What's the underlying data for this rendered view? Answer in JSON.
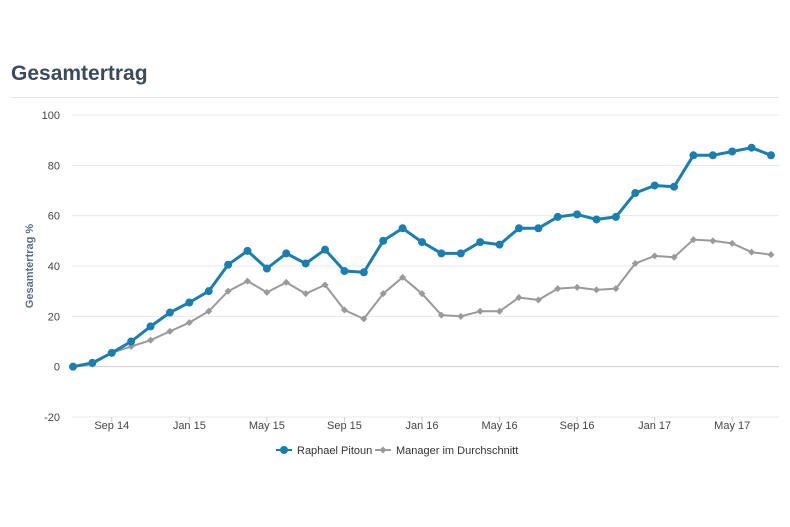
{
  "chart_data": {
    "type": "line",
    "title": "Gesamtertrag",
    "ylabel": "Gesamtertrag %",
    "xlabel": "",
    "ylim": [
      -20,
      100
    ],
    "yticks": [
      -20,
      0,
      20,
      40,
      60,
      80,
      100
    ],
    "x_tick_labels": [
      "Sep 14",
      "Jan 15",
      "May 15",
      "Sep 15",
      "Jan 16",
      "May 16",
      "Sep 16",
      "Jan 17",
      "May 17"
    ],
    "x_tick_index": [
      2,
      6,
      10,
      14,
      18,
      22,
      26,
      30,
      34
    ],
    "grid": true,
    "legend_position": "bottom",
    "x": [
      "Jul 14",
      "Aug 14",
      "Sep 14",
      "Oct 14",
      "Nov 14",
      "Dec 14",
      "Jan 15",
      "Feb 15",
      "Mar 15",
      "Apr 15",
      "May 15",
      "Jun 15",
      "Jul 15",
      "Aug 15",
      "Sep 15",
      "Oct 15",
      "Nov 15",
      "Dec 15",
      "Jan 16",
      "Feb 16",
      "Mar 16",
      "Apr 16",
      "May 16",
      "Jun 16",
      "Jul 16",
      "Aug 16",
      "Sep 16",
      "Oct 16",
      "Nov 16",
      "Dec 16",
      "Jan 17",
      "Feb 17",
      "Mar 17",
      "Apr 17",
      "May 17",
      "Jun 17",
      "Jul 17"
    ],
    "series": [
      {
        "name": "Raphael Pitoun",
        "color": "#1a7fb0",
        "marker": "circle",
        "values": [
          0,
          1.5,
          5.5,
          10,
          16,
          21.5,
          25.5,
          30,
          40.5,
          46,
          39,
          45,
          41,
          46.5,
          38,
          37.5,
          50,
          55,
          49.5,
          45,
          45,
          49.5,
          48.5,
          55,
          55,
          59.5,
          60.5,
          58.5,
          59.5,
          69,
          72,
          71.5,
          84,
          84,
          85.5,
          87,
          84
        ]
      },
      {
        "name": "Manager im Durchschnitt",
        "color": "#9a9a9a",
        "marker": "diamond",
        "values": [
          0,
          1,
          5.5,
          8,
          10.5,
          14,
          17.5,
          22,
          30,
          34,
          29.5,
          33.5,
          29,
          32.5,
          22.5,
          19,
          29,
          35.5,
          29,
          20.5,
          20,
          22,
          22,
          27.5,
          26.5,
          31,
          31.5,
          30.5,
          31,
          41,
          44,
          43.5,
          50.5,
          50,
          49,
          45.5,
          44.5
        ]
      }
    ]
  }
}
